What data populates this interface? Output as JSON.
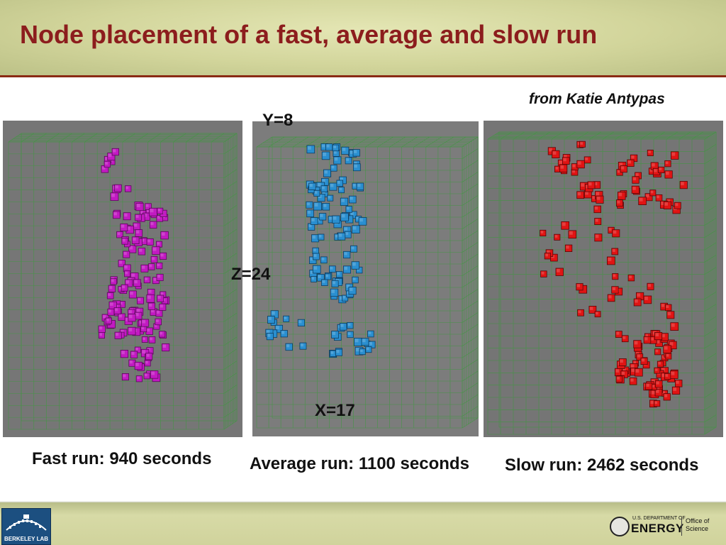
{
  "slide": {
    "title": "Node placement of a fast, average and slow run",
    "credit": "from Katie Antypas"
  },
  "axes": {
    "y_label": "Y=8",
    "z_label": "Z=24",
    "x_label": "X=17"
  },
  "panels": [
    {
      "id": "fast",
      "caption": "Fast run: 940 seconds",
      "node_color": "#c21ac2",
      "node_edge": "#5a0a5a",
      "background": "#767676"
    },
    {
      "id": "average",
      "caption": "Average run: 1100 seconds",
      "node_color": "#2a8fd0",
      "node_edge": "#0d3e62",
      "background": "#7c7c7c"
    },
    {
      "id": "slow",
      "caption": "Slow run: 2462 seconds",
      "node_color": "#e01414",
      "node_edge": "#5a0606",
      "background": "#757575"
    }
  ],
  "footer": {
    "left_logo_text": "BERKELEY LAB",
    "doe_small": "U.S. DEPARTMENT OF",
    "doe_big": "ENERGY",
    "doe_office_1": "Office of",
    "doe_office_2": "Science"
  },
  "colors": {
    "title": "#8c1d1d",
    "grid_line": "#3c9a3c"
  }
}
